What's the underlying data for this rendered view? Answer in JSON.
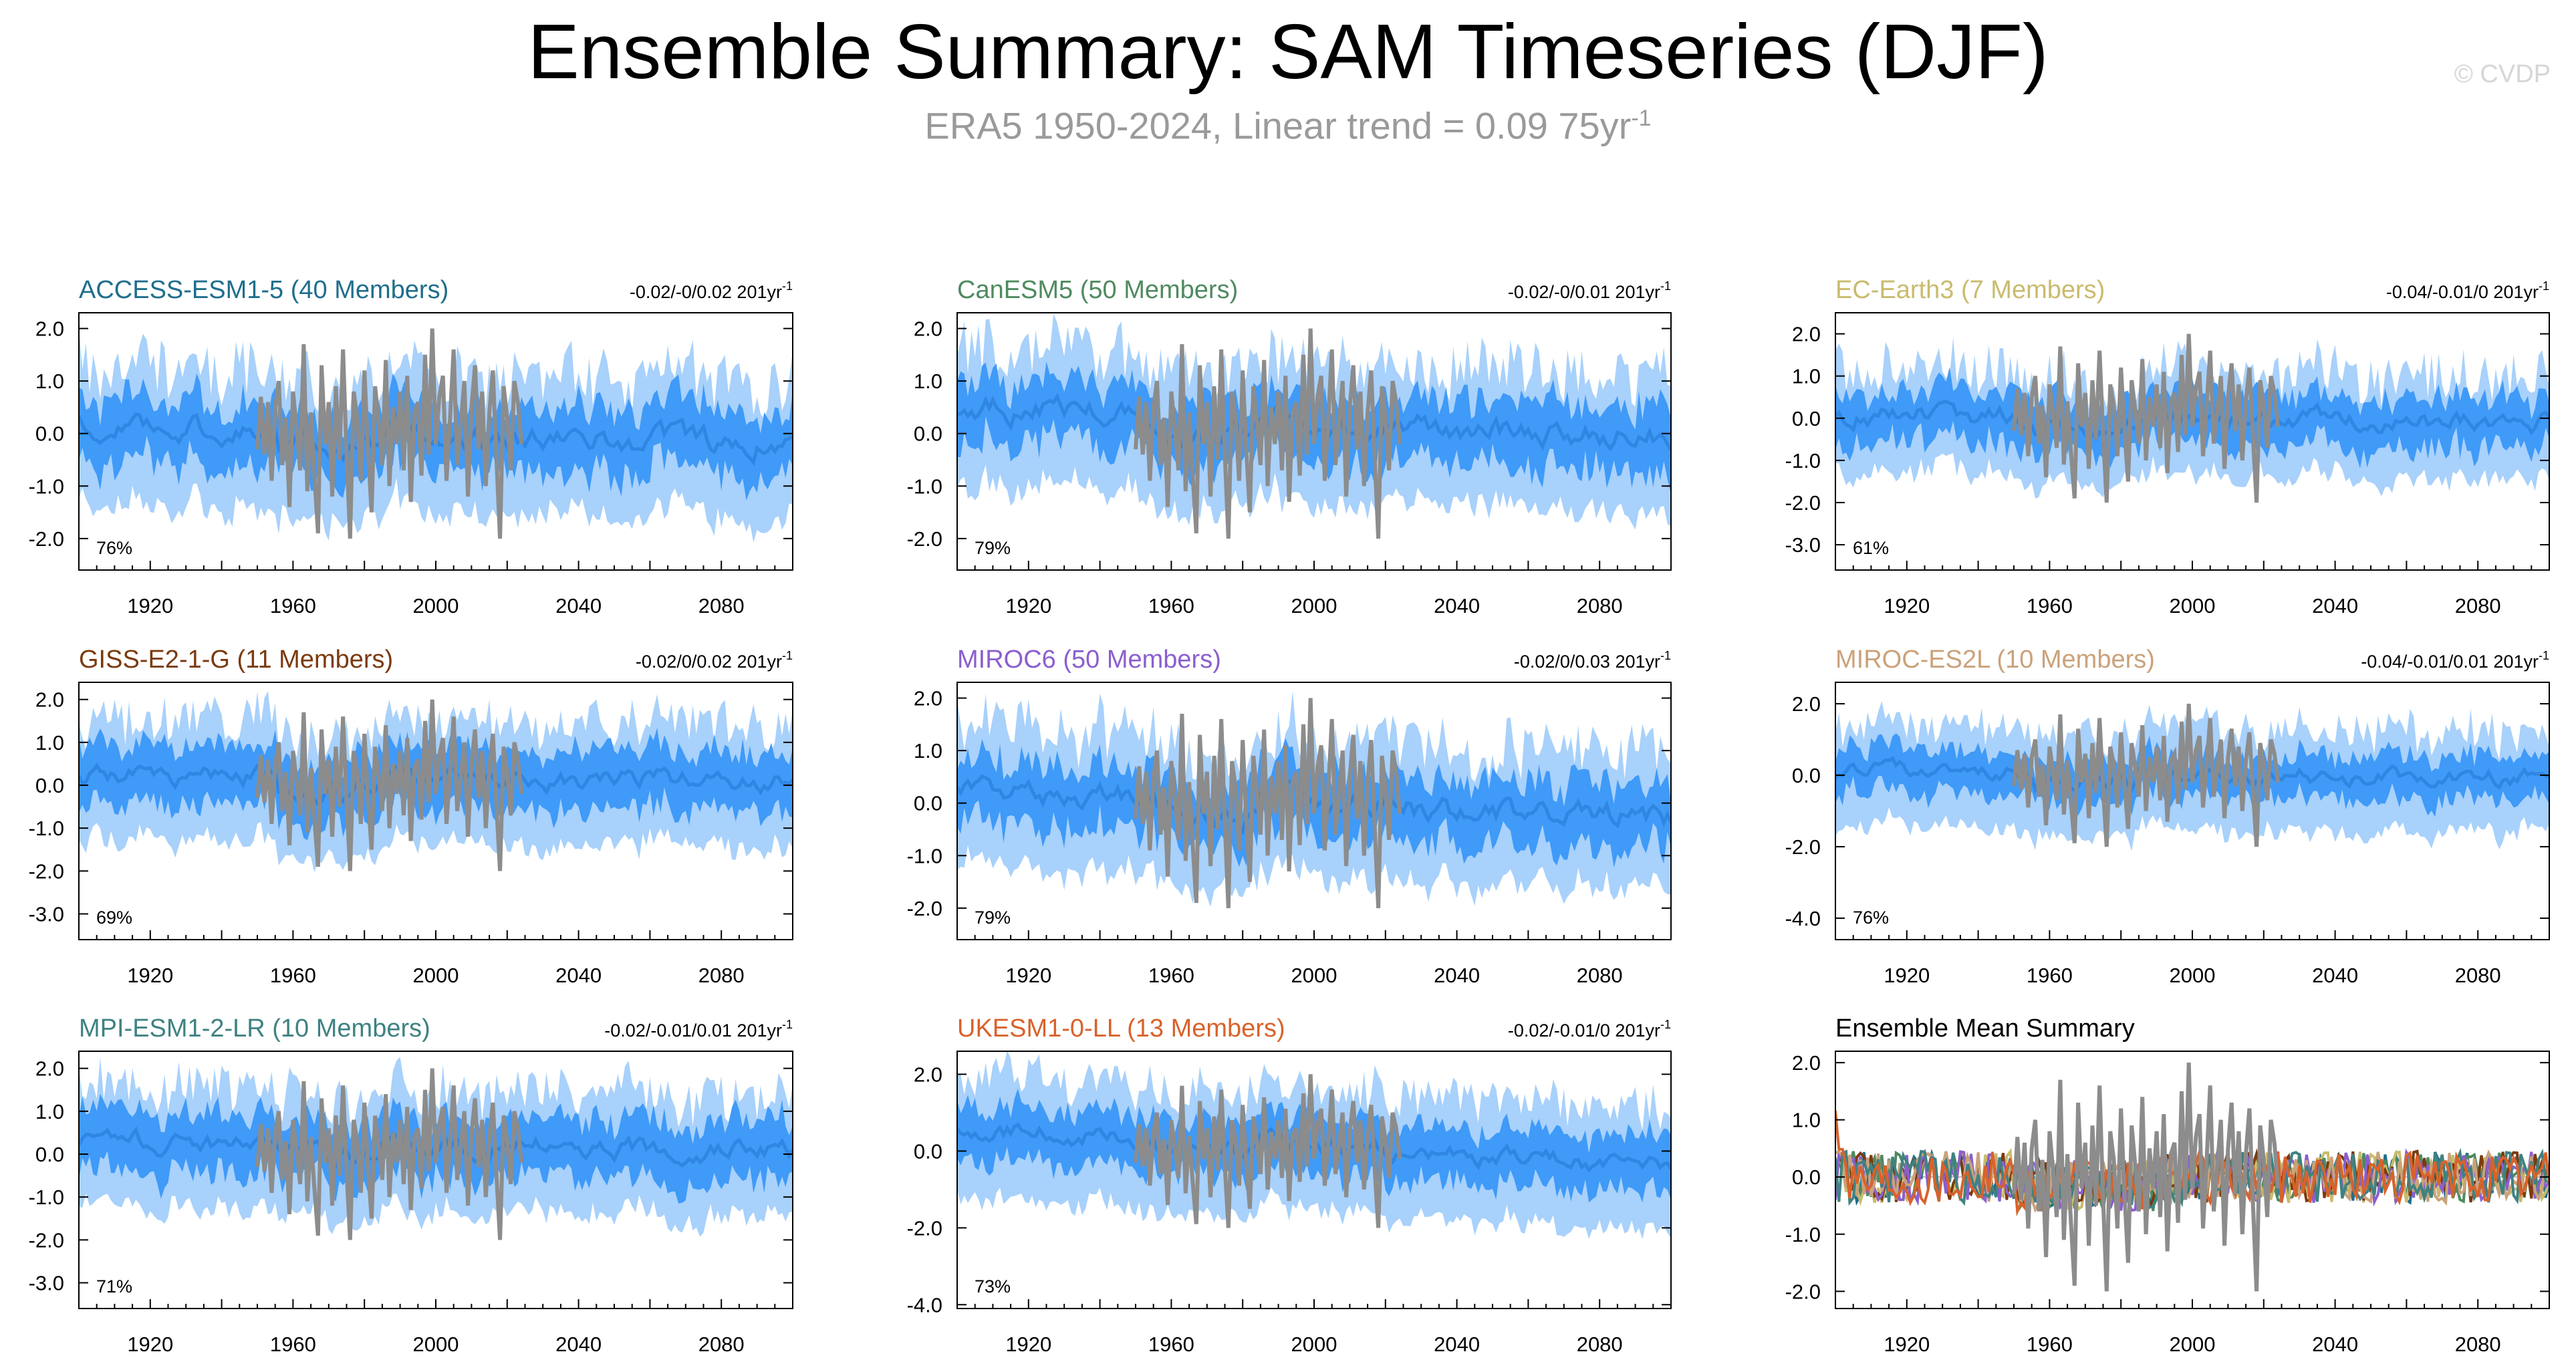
{
  "title": "Ensemble Summary: SAM Timeseries (DJF)",
  "subtitle": "ERA5 1950-2024, Linear trend = 0.09 75yr",
  "subtitle_superscript": "-1",
  "copyright": "© CVDP",
  "colors": {
    "spread_outer": "#a8d1fb",
    "spread_inner": "#3f9af8",
    "ensemble_mean": "#2f86e3",
    "observations": "#8c8c8c"
  },
  "chart_data": [
    {
      "type": "area",
      "title": "ACCESS-ESM1-5 (40 Members)",
      "title_color": "#1f6e8c",
      "trend": "-0.02/-0/0.02 201yr",
      "trend_superscript": "-1",
      "percent": "76%",
      "xlim": [
        1900,
        2100
      ],
      "ylim": [
        -2.6,
        2.3
      ],
      "yticks": [
        "2.0",
        "1.0",
        "0.0",
        "-1.0",
        "-2.0"
      ],
      "xticks": [
        "1920",
        "1960",
        "2000",
        "2040",
        "2080"
      ],
      "mean_start": 0.2,
      "mean_end": -0.2,
      "inner_halfwidth": 0.6,
      "outer_halfwidth": 1.2,
      "obs": [
        -0.3,
        0.7,
        -0.4,
        0.6,
        -0.9,
        0.5,
        1.0,
        -0.6,
        0.3,
        -1.4,
        0.8,
        0.1,
        -0.7,
        1.7,
        -1.1,
        0.4,
        -0.8,
        -1.9,
        1.3,
        -0.2,
        0.6,
        -1.2,
        0.9,
        -0.5,
        1.6,
        -0.4,
        -2.0,
        0.8,
        0.3,
        -0.9,
        1.2,
        -0.3,
        -1.5,
        0.9,
        0.2,
        -0.6,
        1.4,
        -1.0,
        0.5,
        -0.2,
        0.8,
        -0.7,
        1.1,
        -1.3,
        0.4,
        0.6,
        -0.8,
        1.5,
        -0.4,
        2.0,
        -0.2,
        0.7,
        1.1,
        -0.9,
        0.3,
        1.6,
        -0.6,
        0.2,
        1.0,
        -1.2,
        0.5,
        1.3,
        -0.3,
        0.8,
        -1.0,
        0.4,
        1.2,
        -0.5,
        -2.0,
        0.9,
        0.3,
        -0.7,
        1.0,
        0.6,
        -0.2
      ]
    },
    {
      "type": "area",
      "title": "CanESM5 (50 Members)",
      "title_color": "#4f8a60",
      "trend": "-0.02/-0/0.01 201yr",
      "trend_superscript": "-1",
      "percent": "79%",
      "xlim": [
        1900,
        2100
      ],
      "ylim": [
        -2.6,
        2.3
      ],
      "yticks": [
        "2.0",
        "1.0",
        "0.0",
        "-1.0",
        "-2.0"
      ],
      "xticks": [
        "1920",
        "1960",
        "2000",
        "2040",
        "2080"
      ],
      "mean_start": 0.5,
      "mean_end": -0.1,
      "inner_halfwidth": 0.6,
      "outer_halfwidth": 1.2,
      "obs": [
        -0.3,
        0.7,
        -0.4,
        0.6,
        -0.9,
        0.5,
        1.0,
        -0.6,
        0.3,
        -1.4,
        0.8,
        0.1,
        -0.7,
        1.7,
        -1.1,
        0.4,
        -0.8,
        -1.9,
        1.3,
        -0.2,
        0.6,
        -1.2,
        0.9,
        -0.5,
        1.6,
        -0.4,
        -2.0,
        0.8,
        0.3,
        -0.9,
        1.2,
        -0.3,
        -1.5,
        0.9,
        0.2,
        -0.6,
        1.4,
        -1.0,
        0.5,
        -0.2,
        0.8,
        -0.7,
        1.1,
        -1.3,
        0.4,
        0.6,
        -0.8,
        1.5,
        -0.4,
        2.0,
        -0.2,
        0.7,
        1.1,
        -0.9,
        0.3,
        1.6,
        -0.6,
        0.2,
        1.0,
        -1.2,
        0.5,
        1.3,
        -0.3,
        0.8,
        -1.0,
        0.4,
        1.2,
        -0.5,
        -2.0,
        0.9,
        0.3,
        -0.7,
        1.0,
        0.6,
        -0.2
      ]
    },
    {
      "type": "area",
      "title": "EC-Earth3 (7 Members)",
      "title_color": "#c9bb6e",
      "trend": "-0.04/-0.01/0 201yr",
      "trend_superscript": "-1",
      "percent": "61%",
      "xlim": [
        1900,
        2100
      ],
      "ylim": [
        -3.6,
        2.5
      ],
      "yticks": [
        "2.0",
        "1.0",
        "0.0",
        "-1.0",
        "-2.0",
        "-3.0"
      ],
      "xticks": [
        "1920",
        "1960",
        "2000",
        "2040",
        "2080"
      ],
      "mean_start": 0.1,
      "mean_end": -0.1,
      "inner_halfwidth": 0.6,
      "outer_halfwidth": 1.1,
      "obs": [
        -0.3,
        0.7,
        -0.4,
        0.6,
        -0.9,
        0.5,
        1.0,
        -0.6,
        0.3,
        -1.4,
        0.8,
        0.1,
        -0.7,
        1.7,
        -1.1,
        0.4,
        -0.8,
        -1.9,
        1.3,
        -0.2,
        0.6,
        -1.2,
        0.9,
        -0.5,
        1.6,
        -0.4,
        -2.0,
        0.8,
        0.3,
        -0.9,
        1.2,
        -0.3,
        -1.5,
        0.9,
        0.2,
        -0.6,
        1.4,
        -1.0,
        0.5,
        -0.2,
        0.8,
        -0.7,
        1.1,
        -1.3,
        0.4,
        0.6,
        -0.8,
        1.5,
        -0.4,
        2.0,
        -0.2,
        0.7,
        1.1,
        -0.9,
        0.3,
        1.6,
        -0.6,
        0.2,
        1.0,
        -1.2,
        0.5,
        1.3,
        -0.3,
        0.8,
        -1.0,
        0.4,
        1.2,
        -0.5,
        -2.0,
        0.9,
        0.3,
        -0.7,
        1.0,
        0.6,
        -0.2
      ]
    },
    {
      "type": "area",
      "title": "GISS-E2-1-G (11 Members)",
      "title_color": "#7b3a0e",
      "trend": "-0.02/0/0.02 201yr",
      "trend_superscript": "-1",
      "percent": "69%",
      "xlim": [
        1900,
        2100
      ],
      "ylim": [
        -3.6,
        2.4
      ],
      "yticks": [
        "2.0",
        "1.0",
        "0.0",
        "-1.0",
        "-2.0",
        "-3.0"
      ],
      "xticks": [
        "1920",
        "1960",
        "2000",
        "2040",
        "2080"
      ],
      "mean_start": 0.2,
      "mean_end": 0.1,
      "inner_halfwidth": 0.7,
      "outer_halfwidth": 1.3,
      "obs": [
        -0.3,
        0.7,
        -0.4,
        0.6,
        -0.9,
        0.5,
        1.0,
        -0.6,
        0.3,
        -1.4,
        0.8,
        0.1,
        -0.7,
        1.7,
        -1.1,
        0.4,
        -0.8,
        -1.9,
        1.3,
        -0.2,
        0.6,
        -1.2,
        0.9,
        -0.5,
        1.6,
        -0.4,
        -2.0,
        0.8,
        0.3,
        -0.9,
        1.2,
        -0.3,
        -1.5,
        0.9,
        0.2,
        -0.6,
        1.4,
        -1.0,
        0.5,
        -0.2,
        0.8,
        -0.7,
        1.1,
        -1.3,
        0.4,
        0.6,
        -0.8,
        1.5,
        -0.4,
        2.0,
        -0.2,
        0.7,
        1.1,
        -0.9,
        0.3,
        1.6,
        -0.6,
        0.2,
        1.0,
        -1.2,
        0.5,
        1.3,
        -0.3,
        0.8,
        -1.0,
        0.4,
        1.2,
        -0.5,
        -2.0,
        0.9,
        0.3,
        -0.7,
        1.0,
        0.6,
        -0.2
      ]
    },
    {
      "type": "area",
      "title": "MIROC6 (50 Members)",
      "title_color": "#8b5fce",
      "trend": "-0.02/0/0.03 201yr",
      "trend_superscript": "-1",
      "percent": "79%",
      "xlim": [
        1900,
        2100
      ],
      "ylim": [
        -2.6,
        2.3
      ],
      "yticks": [
        "2.0",
        "1.0",
        "0.0",
        "-1.0",
        "-2.0"
      ],
      "xticks": [
        "1920",
        "1960",
        "2000",
        "2040",
        "2080"
      ],
      "mean_start": 0.2,
      "mean_end": -0.3,
      "inner_halfwidth": 0.6,
      "outer_halfwidth": 1.2,
      "obs": [
        -0.3,
        0.7,
        -0.4,
        0.6,
        -0.9,
        0.5,
        1.0,
        -0.6,
        0.3,
        -1.4,
        0.8,
        0.1,
        -0.7,
        1.7,
        -1.1,
        0.4,
        -0.8,
        -1.9,
        1.3,
        -0.2,
        0.6,
        -1.2,
        0.9,
        -0.5,
        1.6,
        -0.4,
        -2.0,
        0.8,
        0.3,
        -0.9,
        1.2,
        -0.3,
        -1.5,
        0.9,
        0.2,
        -0.6,
        1.4,
        -1.0,
        0.5,
        -0.2,
        0.8,
        -0.7,
        1.1,
        -1.3,
        0.4,
        0.6,
        -0.8,
        1.5,
        -0.4,
        2.0,
        -0.2,
        0.7,
        1.1,
        -0.9,
        0.3,
        1.6,
        -0.6,
        0.2,
        1.0,
        -1.2,
        0.5,
        1.3,
        -0.3,
        0.8,
        -1.0,
        0.4,
        1.2,
        -0.5,
        -2.0,
        0.9,
        0.3,
        -0.7,
        1.0,
        0.6,
        -0.2
      ]
    },
    {
      "type": "area",
      "title": "MIROC-ES2L (10 Members)",
      "title_color": "#caa27a",
      "trend": "-0.04/-0.01/0.01 201yr",
      "trend_superscript": "-1",
      "percent": "76%",
      "xlim": [
        1900,
        2100
      ],
      "ylim": [
        -4.6,
        2.6
      ],
      "yticks": [
        "2.0",
        "0.0",
        "-2.0",
        "-4.0"
      ],
      "xticks": [
        "1920",
        "1960",
        "2000",
        "2040",
        "2080"
      ],
      "mean_start": 0.1,
      "mean_end": -0.1,
      "inner_halfwidth": 0.6,
      "outer_halfwidth": 1.3,
      "obs": [
        -0.3,
        0.7,
        -0.4,
        0.6,
        -0.9,
        0.5,
        1.0,
        -0.6,
        0.3,
        -1.4,
        0.8,
        0.1,
        -0.7,
        1.7,
        -1.1,
        0.4,
        -0.8,
        -1.9,
        1.3,
        -0.2,
        0.6,
        -1.2,
        0.9,
        -0.5,
        1.6,
        -0.4,
        -2.0,
        0.8,
        0.3,
        -0.9,
        1.2,
        -0.3,
        -1.5,
        0.9,
        0.2,
        -0.6,
        1.4,
        -1.0,
        0.5,
        -0.2,
        0.8,
        -0.7,
        1.1,
        -1.3,
        0.4,
        0.6,
        -0.8,
        1.5,
        -0.4,
        2.0,
        -0.2,
        0.7,
        1.1,
        -0.9,
        0.3,
        1.6,
        -0.6,
        0.2,
        1.0,
        -1.2,
        0.5,
        1.3,
        -0.3,
        0.8,
        -1.0,
        0.4,
        1.2,
        -0.5,
        -2.0,
        0.9,
        0.3,
        -0.7,
        1.0,
        0.6,
        -0.2
      ]
    },
    {
      "type": "area",
      "title": "MPI-ESM1-2-LR (10 Members)",
      "title_color": "#3f8282",
      "trend": "-0.02/-0.01/0.01 201yr",
      "trend_superscript": "-1",
      "percent": "71%",
      "xlim": [
        1900,
        2100
      ],
      "ylim": [
        -3.6,
        2.4
      ],
      "yticks": [
        "2.0",
        "1.0",
        "0.0",
        "-1.0",
        "-2.0",
        "-3.0"
      ],
      "xticks": [
        "1920",
        "1960",
        "2000",
        "2040",
        "2080"
      ],
      "mean_start": 0.3,
      "mean_end": 0.1,
      "inner_halfwidth": 0.7,
      "outer_halfwidth": 1.3,
      "obs": [
        -0.3,
        0.7,
        -0.4,
        0.6,
        -0.9,
        0.5,
        1.0,
        -0.6,
        0.3,
        -1.4,
        0.8,
        0.1,
        -0.7,
        1.7,
        -1.1,
        0.4,
        -0.8,
        -1.9,
        1.3,
        -0.2,
        0.6,
        -1.2,
        0.9,
        -0.5,
        1.6,
        -0.4,
        -2.0,
        0.8,
        0.3,
        -0.9,
        1.2,
        -0.3,
        -1.5,
        0.9,
        0.2,
        -0.6,
        1.4,
        -1.0,
        0.5,
        -0.2,
        0.8,
        -0.7,
        1.1,
        -1.3,
        0.4,
        0.6,
        -0.8,
        1.5,
        -0.4,
        2.0,
        -0.2,
        0.7,
        1.1,
        -0.9,
        0.3,
        1.6,
        -0.6,
        0.2,
        1.0,
        -1.2,
        0.5,
        1.3,
        -0.3,
        0.8,
        -1.0,
        0.4,
        1.2,
        -0.5,
        -2.0,
        0.9,
        0.3,
        -0.7,
        1.0,
        0.6,
        -0.2
      ]
    },
    {
      "type": "area",
      "title": "UKESM1-0-LL (13 Members)",
      "title_color": "#d9622b",
      "trend": "-0.02/-0.01/0 201yr",
      "trend_superscript": "-1",
      "percent": "73%",
      "xlim": [
        1900,
        2100
      ],
      "ylim": [
        -4.1,
        2.6
      ],
      "yticks": [
        "2.0",
        "0.0",
        "-2.0",
        "-4.0"
      ],
      "xticks": [
        "1920",
        "1960",
        "2000",
        "2040",
        "2080"
      ],
      "mean_start": 0.6,
      "mean_end": -0.4,
      "inner_halfwidth": 0.7,
      "outer_halfwidth": 1.5,
      "obs": [
        -0.3,
        0.7,
        -0.4,
        0.6,
        -0.9,
        0.5,
        1.0,
        -0.6,
        0.3,
        -1.4,
        0.8,
        0.1,
        -0.7,
        1.7,
        -1.1,
        0.4,
        -0.8,
        -1.9,
        1.3,
        -0.2,
        0.6,
        -1.2,
        0.9,
        -0.5,
        1.6,
        -0.4,
        -2.0,
        0.8,
        0.3,
        -0.9,
        1.2,
        -0.3,
        -1.5,
        0.9,
        0.2,
        -0.6,
        1.4,
        -1.0,
        0.5,
        -0.2,
        0.8,
        -0.7,
        1.1,
        -1.3,
        0.4,
        0.6,
        -0.8,
        1.5,
        -0.4,
        2.0,
        -0.2,
        0.7,
        1.1,
        -0.9,
        0.3,
        1.6,
        -0.6,
        0.2,
        1.0,
        -1.2,
        0.5,
        1.3,
        -0.3,
        0.8,
        -1.0,
        0.4,
        1.2,
        -0.5,
        -2.0,
        0.9,
        0.3,
        -0.7,
        1.0,
        0.6,
        -0.2
      ]
    },
    {
      "type": "line",
      "title": "Ensemble Mean Summary",
      "title_color": "#000000",
      "xlim": [
        1900,
        2100
      ],
      "ylim": [
        -2.3,
        2.2
      ],
      "yticks": [
        "2.0",
        "1.0",
        "0.0",
        "-1.0",
        "-2.0"
      ],
      "xticks": [
        "1920",
        "1960",
        "2000",
        "2040",
        "2080"
      ],
      "series_colors": [
        "#1f6e8c",
        "#4f8a60",
        "#c9bb6e",
        "#7b3a0e",
        "#8b5fce",
        "#caa27a",
        "#3f8282",
        "#d9622b"
      ],
      "obs": [
        -0.3,
        0.7,
        -0.4,
        0.6,
        -0.9,
        0.5,
        1.0,
        -0.6,
        0.3,
        -1.4,
        0.8,
        0.1,
        -0.7,
        1.7,
        -1.1,
        0.4,
        -0.8,
        -1.9,
        1.3,
        -0.2,
        0.6,
        -1.2,
        0.9,
        -0.5,
        1.6,
        -0.4,
        -2.0,
        0.8,
        0.3,
        -0.9,
        1.2,
        -0.3,
        -1.5,
        0.9,
        0.2,
        -0.6,
        1.4,
        -1.0,
        0.5,
        -0.2,
        0.8,
        -0.7,
        1.1,
        -1.3,
        0.4,
        0.6,
        -0.8,
        1.5,
        -0.4,
        2.0,
        -0.2,
        0.7,
        1.1,
        -0.9,
        0.3,
        1.6,
        -0.6,
        0.2,
        1.0,
        -1.2,
        0.5,
        1.3,
        -0.3,
        0.8,
        -1.0,
        0.4,
        1.2,
        -0.5,
        -2.0,
        0.9,
        0.3,
        -0.7,
        1.0,
        0.6,
        -0.2
      ]
    }
  ]
}
